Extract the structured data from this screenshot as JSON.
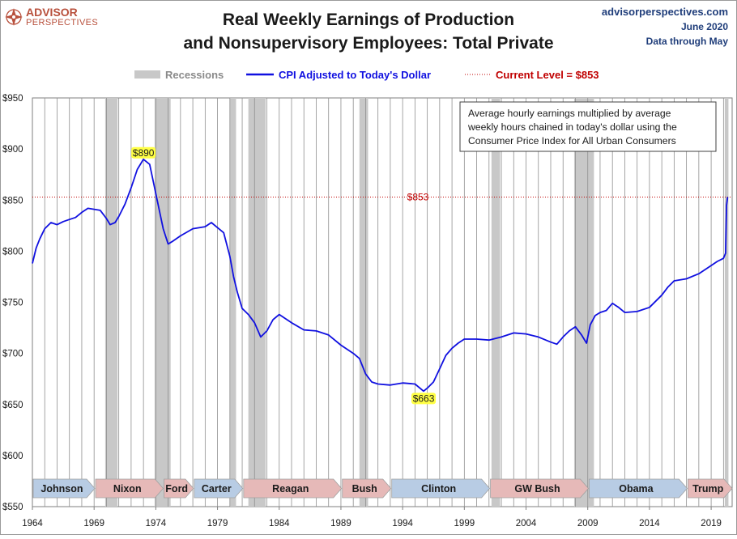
{
  "brand": {
    "name_line1": "ADVISOR",
    "name_line2": "PERSPECTIVES",
    "site": "advisorperspectives.com",
    "date": "June 2020",
    "data_through": "Data through May"
  },
  "colors": {
    "series": "#1010e0",
    "recession": "#c8c8c8",
    "current_level": "#c00000",
    "badge": "#ffff44",
    "brand_red": "#b8503c",
    "brand_blue": "#1f3d7a",
    "dem_box": "#b8cce4",
    "rep_box": "#e6b9b8"
  },
  "chart_data": {
    "type": "line",
    "title": "Real Weekly Earnings of Production and Nonsupervisory Employees: Total Private",
    "title_lines": [
      "Real Weekly Earnings of Production",
      "and Nonsupervisory Employees: Total Private"
    ],
    "xlabel": "",
    "ylabel": "",
    "xlim": [
      1964.0,
      2020.7
    ],
    "ylim": [
      550,
      950
    ],
    "x_ticks": [
      1964,
      1969,
      1974,
      1979,
      1984,
      1989,
      1994,
      1999,
      2004,
      2009,
      2014,
      2019
    ],
    "y_ticks": [
      {
        "value": 550,
        "label": "$550"
      },
      {
        "value": 600,
        "label": "$600"
      },
      {
        "value": 650,
        "label": "$650"
      },
      {
        "value": 700,
        "label": "$700"
      },
      {
        "value": 750,
        "label": "$750"
      },
      {
        "value": 800,
        "label": "$800"
      },
      {
        "value": 850,
        "label": "$850"
      },
      {
        "value": 900,
        "label": "$900"
      },
      {
        "value": 950,
        "label": "$950"
      }
    ],
    "grid": {
      "vertical": true,
      "horizontal": false
    },
    "legend": {
      "position": "top",
      "items": [
        {
          "label": "Recessions",
          "kind": "band"
        },
        {
          "label": "CPI Adjusted to Today's Dollar",
          "kind": "line"
        },
        {
          "label": "Current Level = $853",
          "kind": "dotted"
        }
      ]
    },
    "series": [
      {
        "name": "CPI Adjusted to Today's Dollar",
        "x": [
          1964.0,
          1964.3,
          1964.6,
          1965.0,
          1965.5,
          1966.0,
          1966.5,
          1967.0,
          1967.5,
          1968.0,
          1968.5,
          1969.0,
          1969.5,
          1970.0,
          1970.3,
          1970.7,
          1971.0,
          1971.5,
          1972.0,
          1972.5,
          1973.0,
          1973.5,
          1973.8,
          1974.2,
          1974.6,
          1975.0,
          1975.4,
          1976.0,
          1977.0,
          1978.0,
          1978.5,
          1979.0,
          1979.5,
          1980.0,
          1980.3,
          1980.6,
          1981.0,
          1981.5,
          1982.0,
          1982.5,
          1983.0,
          1983.5,
          1984.0,
          1985.0,
          1986.0,
          1987.0,
          1988.0,
          1989.0,
          1990.0,
          1990.5,
          1991.0,
          1991.5,
          1992.0,
          1993.0,
          1994.0,
          1995.0,
          1995.7,
          1996.0,
          1996.5,
          1997.0,
          1997.5,
          1998.0,
          1998.5,
          1999.0,
          2000.0,
          2001.0,
          2002.0,
          2003.0,
          2004.0,
          2005.0,
          2006.0,
          2006.5,
          2007.0,
          2007.5,
          2008.0,
          2008.5,
          2008.9,
          2009.2,
          2009.6,
          2010.0,
          2010.5,
          2011.0,
          2011.5,
          2012.0,
          2013.0,
          2014.0,
          2015.0,
          2015.5,
          2016.0,
          2017.0,
          2018.0,
          2019.0,
          2019.5,
          2020.0,
          2020.17,
          2020.25,
          2020.33
        ],
        "values": [
          788,
          803,
          812,
          822,
          828,
          826,
          829,
          831,
          833,
          838,
          842,
          841,
          840,
          832,
          826,
          828,
          834,
          846,
          862,
          880,
          890,
          885,
          868,
          845,
          822,
          807,
          810,
          815,
          822,
          824,
          828,
          823,
          818,
          795,
          775,
          760,
          744,
          738,
          730,
          716,
          722,
          733,
          738,
          730,
          723,
          722,
          718,
          708,
          700,
          695,
          680,
          672,
          670,
          669,
          671,
          670,
          663,
          666,
          672,
          685,
          698,
          705,
          710,
          714,
          714,
          713,
          716,
          720,
          719,
          716,
          711,
          709,
          716,
          722,
          726,
          718,
          710,
          728,
          737,
          740,
          742,
          749,
          745,
          740,
          741,
          745,
          757,
          765,
          771,
          773,
          778,
          786,
          790,
          793,
          798,
          845,
          853
        ]
      }
    ],
    "recessions": [
      [
        1969.9,
        1970.9
      ],
      [
        1973.9,
        1975.2
      ],
      [
        1980.0,
        1980.5
      ],
      [
        1981.5,
        1982.9
      ],
      [
        1990.5,
        1991.2
      ],
      [
        2001.2,
        2001.9
      ],
      [
        2007.9,
        2009.5
      ],
      [
        2020.1,
        2020.4
      ]
    ],
    "reference_line": {
      "value": 853,
      "label": "$853"
    },
    "annotations": [
      {
        "label": "$890",
        "x": 1973.0,
        "y": 890
      },
      {
        "label": "$663",
        "x": 1995.7,
        "y": 663
      }
    ],
    "note": "Average hourly earnings multiplied by average weekly hours chained in today's dollar using the Consumer Price Index for All Urban Consumers",
    "note_lines": [
      "Average hourly earnings multiplied by average",
      "weekly hours chained in today's dollar using the",
      "Consumer Price Index for All Urban Consumers"
    ],
    "presidents": [
      {
        "name": "Johnson",
        "start": 1964.0,
        "end": 1969.05,
        "party": "D"
      },
      {
        "name": "Nixon",
        "start": 1969.05,
        "end": 1974.6,
        "party": "R"
      },
      {
        "name": "Ford",
        "start": 1974.6,
        "end": 1977.05,
        "party": "R"
      },
      {
        "name": "Carter",
        "start": 1977.05,
        "end": 1981.05,
        "party": "D"
      },
      {
        "name": "Reagan",
        "start": 1981.05,
        "end": 1989.05,
        "party": "R"
      },
      {
        "name": "Bush",
        "start": 1989.05,
        "end": 1993.05,
        "party": "R"
      },
      {
        "name": "Clinton",
        "start": 1993.05,
        "end": 2001.05,
        "party": "D"
      },
      {
        "name": "GW Bush",
        "start": 2001.05,
        "end": 2009.05,
        "party": "R"
      },
      {
        "name": "Obama",
        "start": 2009.05,
        "end": 2017.05,
        "party": "D"
      },
      {
        "name": "Trump",
        "start": 2017.05,
        "end": 2020.7,
        "party": "R"
      }
    ]
  }
}
